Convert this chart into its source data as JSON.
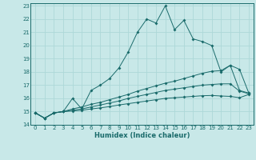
{
  "xlabel": "Humidex (Indice chaleur)",
  "bg_color": "#c8e8e8",
  "grid_color": "#add8d8",
  "line_color": "#1a6b6b",
  "xlim": [
    -0.5,
    23.5
  ],
  "ylim": [
    14,
    23.2
  ],
  "x_ticks": [
    0,
    1,
    2,
    3,
    4,
    5,
    6,
    7,
    8,
    9,
    10,
    11,
    12,
    13,
    14,
    15,
    16,
    17,
    18,
    19,
    20,
    21,
    22,
    23
  ],
  "y_ticks": [
    14,
    15,
    16,
    17,
    18,
    19,
    20,
    21,
    22,
    23
  ],
  "line1_x": [
    0,
    1,
    2,
    3,
    4,
    5,
    6,
    7,
    8,
    9,
    10,
    11,
    12,
    13,
    14,
    15,
    16,
    17,
    18,
    19,
    20,
    21,
    22,
    23
  ],
  "line1_y": [
    14.9,
    14.5,
    14.9,
    15.0,
    16.0,
    15.2,
    16.6,
    17.0,
    17.5,
    18.3,
    19.5,
    21.0,
    22.0,
    21.7,
    23.0,
    21.2,
    21.9,
    20.5,
    20.3,
    20.0,
    18.0,
    18.5,
    18.2,
    16.4
  ],
  "line2_x": [
    0,
    1,
    2,
    3,
    4,
    5,
    6,
    7,
    8,
    9,
    10,
    11,
    12,
    13,
    14,
    15,
    16,
    17,
    18,
    19,
    20,
    21,
    22,
    23
  ],
  "line2_y": [
    14.9,
    14.5,
    14.9,
    15.0,
    15.2,
    15.35,
    15.55,
    15.7,
    15.9,
    16.1,
    16.3,
    16.55,
    16.75,
    16.95,
    17.15,
    17.3,
    17.5,
    17.7,
    17.9,
    18.05,
    18.1,
    18.5,
    16.6,
    16.4
  ],
  "line3_x": [
    0,
    1,
    2,
    3,
    4,
    5,
    6,
    7,
    8,
    9,
    10,
    11,
    12,
    13,
    14,
    15,
    16,
    17,
    18,
    19,
    20,
    21,
    22,
    23
  ],
  "line3_y": [
    14.9,
    14.5,
    14.9,
    15.0,
    15.1,
    15.2,
    15.35,
    15.5,
    15.65,
    15.8,
    16.0,
    16.15,
    16.3,
    16.45,
    16.6,
    16.7,
    16.8,
    16.9,
    17.0,
    17.05,
    17.1,
    17.1,
    16.55,
    16.35
  ],
  "line4_x": [
    0,
    1,
    2,
    3,
    4,
    5,
    6,
    7,
    8,
    9,
    10,
    11,
    12,
    13,
    14,
    15,
    16,
    17,
    18,
    19,
    20,
    21,
    22,
    23
  ],
  "line4_y": [
    14.9,
    14.5,
    14.9,
    15.0,
    15.05,
    15.1,
    15.2,
    15.28,
    15.38,
    15.5,
    15.6,
    15.7,
    15.8,
    15.9,
    16.0,
    16.05,
    16.1,
    16.15,
    16.2,
    16.22,
    16.18,
    16.15,
    16.05,
    16.3
  ]
}
